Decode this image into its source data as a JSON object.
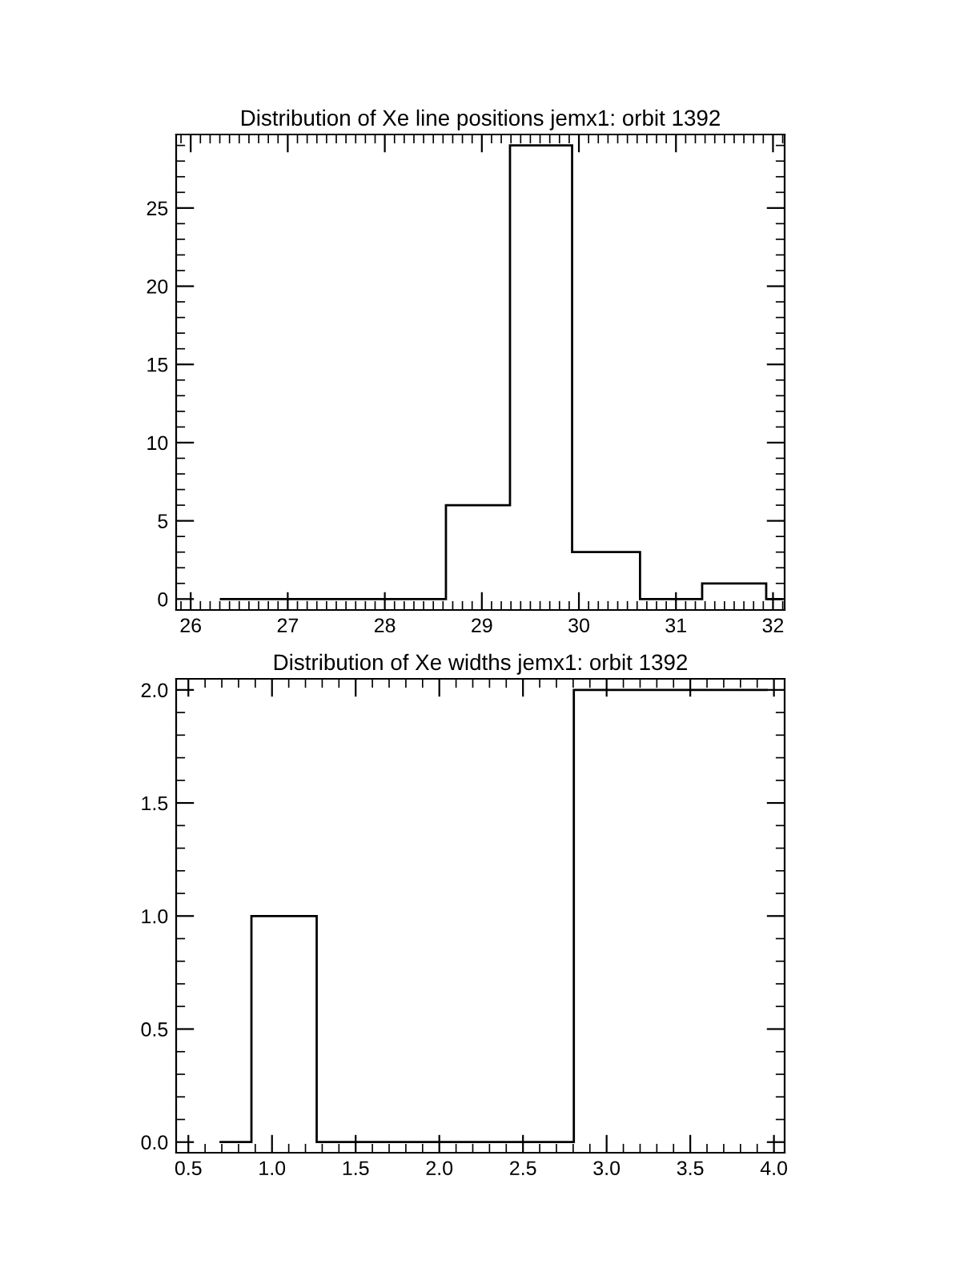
{
  "chart_data": [
    {
      "type": "histogram",
      "title": "Distribution of Xe line positions jemx1: orbit 1392",
      "bins": [
        26.3,
        28.63,
        29.29,
        29.93,
        30.63,
        31.27,
        31.93,
        32.1
      ],
      "values": [
        0,
        6,
        29,
        3,
        0,
        1,
        0
      ],
      "color": "#000000",
      "xlim": [
        25.85,
        32.12
      ],
      "ylim": [
        -0.7,
        29.7
      ],
      "xticks": [
        26,
        27,
        28,
        29,
        30,
        31,
        32
      ],
      "yticks": [
        0,
        5,
        10,
        15,
        20,
        25
      ],
      "grid": false,
      "legend": false
    },
    {
      "type": "histogram",
      "title": "Distribution of Xe widths jemx1: orbit 1392",
      "bins": [
        0.686,
        0.877,
        1.267,
        2.804,
        3.962
      ],
      "values": [
        0,
        1,
        0,
        2
      ],
      "color": "#000000",
      "xlim": [
        0.427,
        4.064
      ],
      "ylim": [
        -0.047,
        2.049
      ],
      "xticks": [
        {
          "value": 0.5,
          "label": "0.5"
        },
        {
          "value": 1.0,
          "label": "1.0"
        },
        {
          "value": 1.5,
          "label": "1.5"
        },
        {
          "value": 2.0,
          "label": "2.0"
        },
        {
          "value": 2.5,
          "label": "2.5"
        },
        {
          "value": 3.0,
          "label": "3.0"
        },
        {
          "value": 3.5,
          "label": "3.5"
        },
        {
          "value": 4.0,
          "label": "4.0"
        }
      ],
      "yticks": [
        {
          "value": 0.0,
          "label": "0.0"
        },
        {
          "value": 0.5,
          "label": "0.5"
        },
        {
          "value": 1.0,
          "label": "1.0"
        },
        {
          "value": 1.5,
          "label": "1.5"
        },
        {
          "value": 2.0,
          "label": "2.0"
        }
      ],
      "grid": false,
      "legend": false
    }
  ]
}
